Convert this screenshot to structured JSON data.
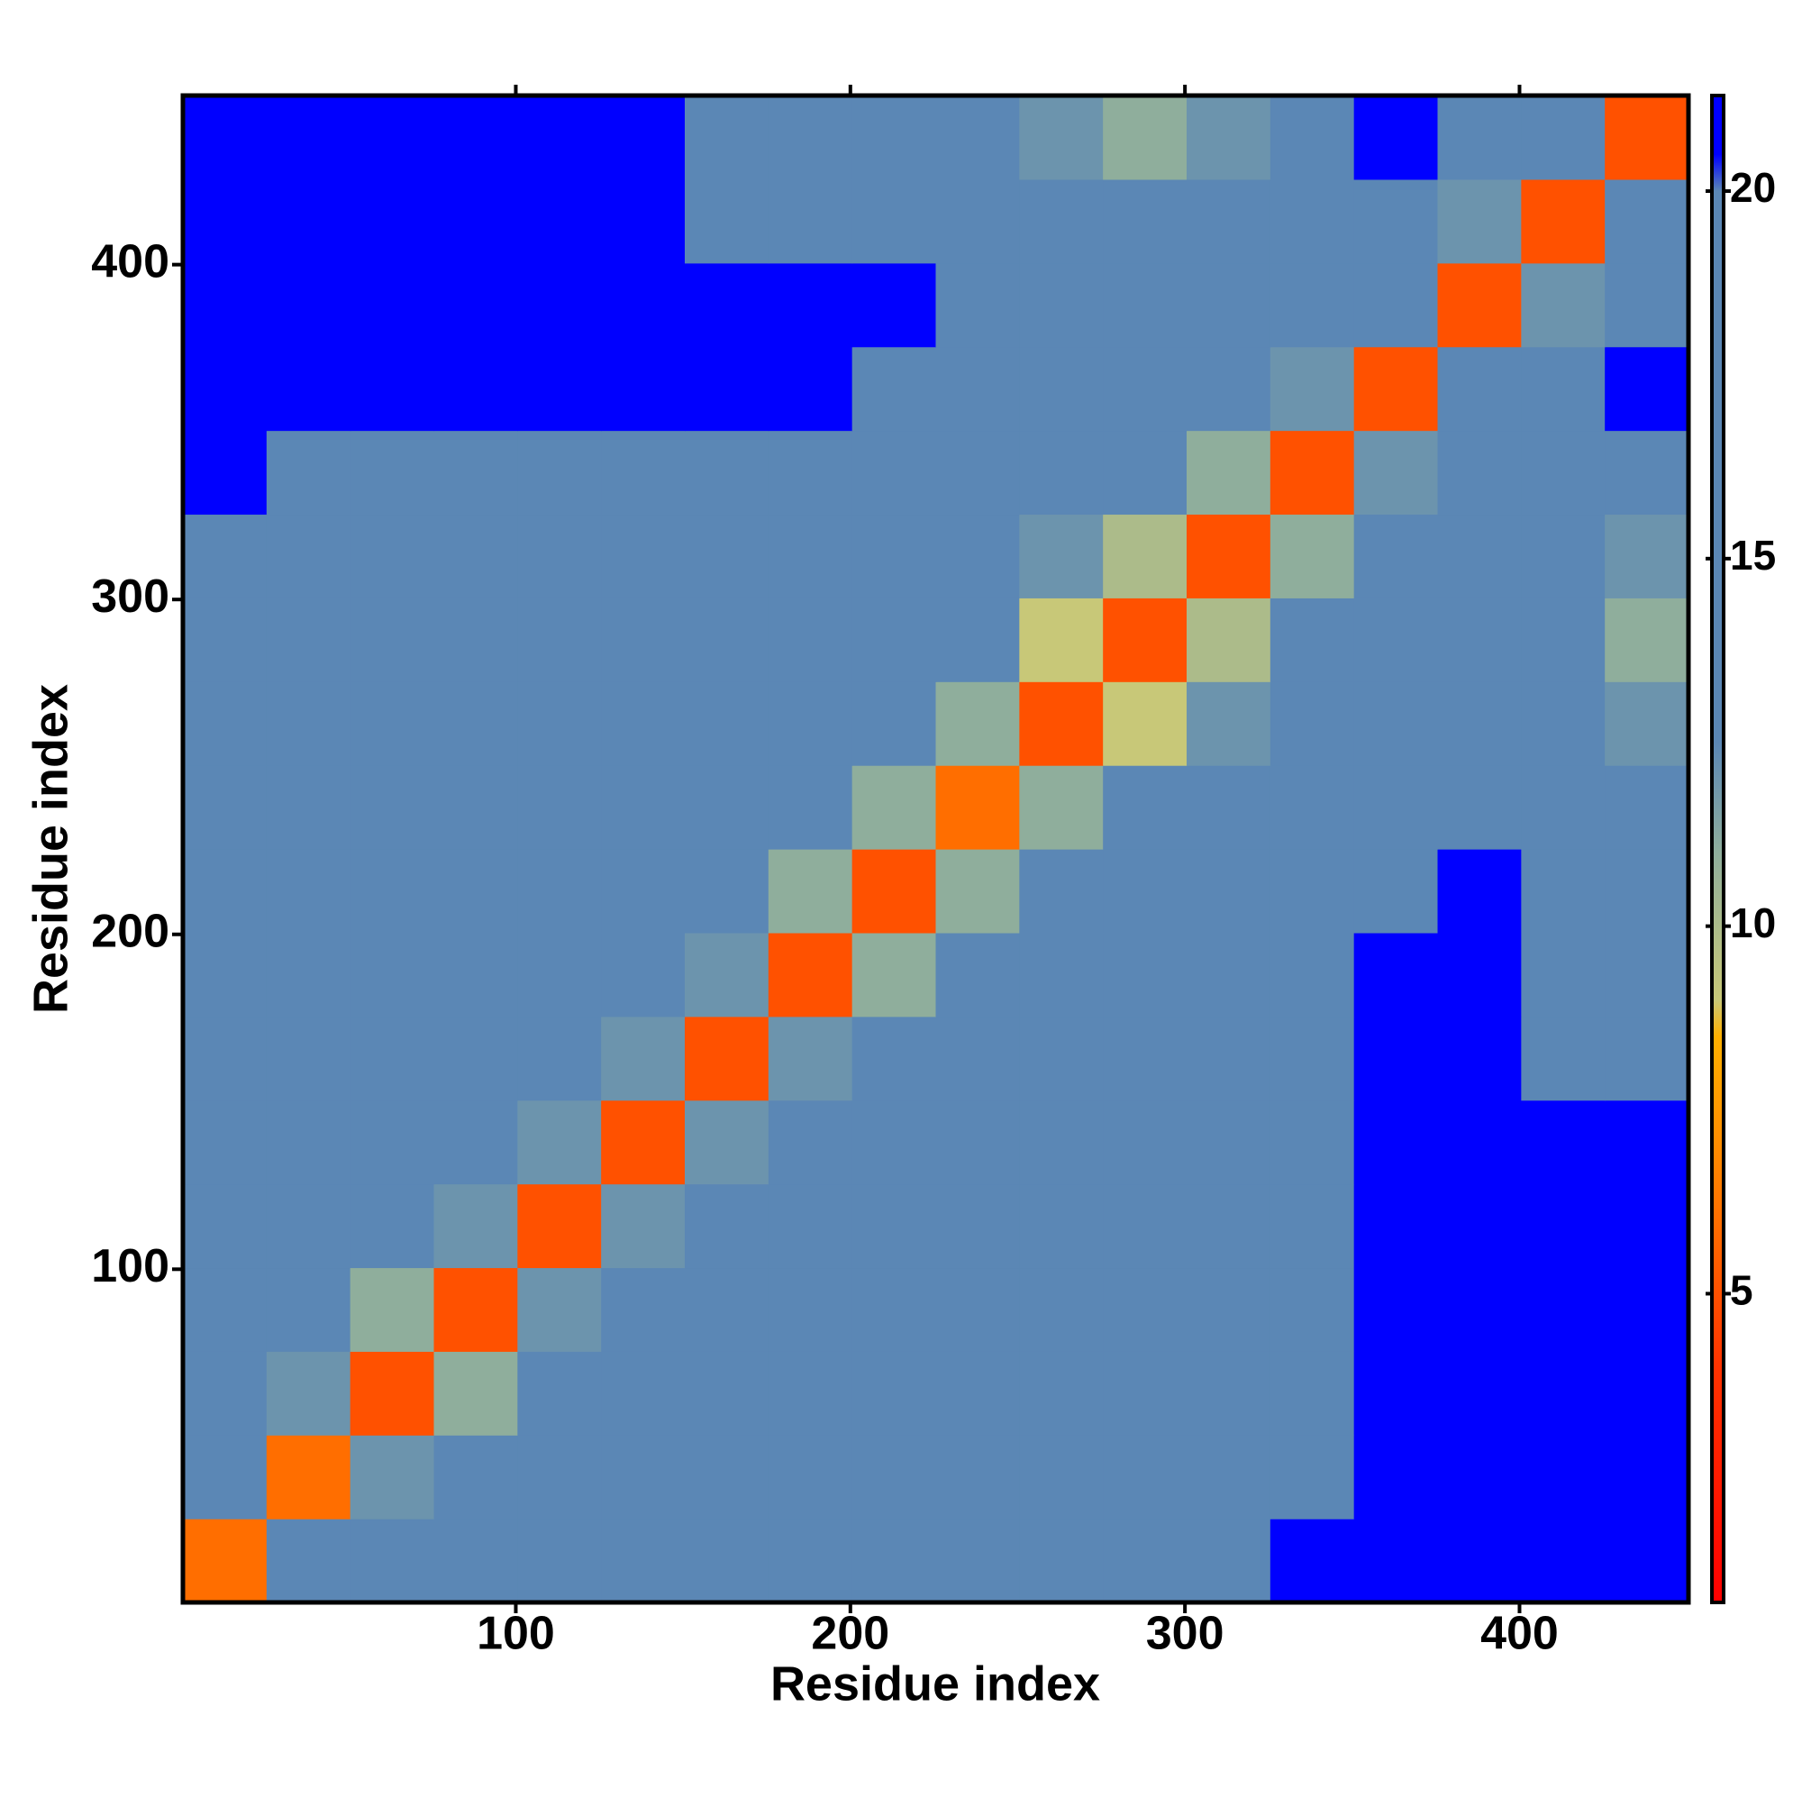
{
  "chart_data": {
    "type": "heatmap",
    "xlabel": "Residue index",
    "ylabel": "Residue index",
    "xlim": [
      0.5,
      450.5
    ],
    "ylim": [
      0.5,
      450.5
    ],
    "xticks": [
      100,
      200,
      300,
      400
    ],
    "yticks": [
      100,
      200,
      300,
      400
    ],
    "x": [
      13,
      38,
      63,
      88,
      113,
      138,
      163,
      188,
      213,
      238,
      263,
      288,
      313,
      338,
      363,
      388,
      413,
      438
    ],
    "y": [
      13,
      38,
      63,
      88,
      113,
      138,
      163,
      188,
      213,
      238,
      263,
      288,
      313,
      338,
      363,
      388,
      413,
      438
    ],
    "z": [
      [
        6,
        13,
        18,
        18,
        19,
        19,
        19,
        19,
        19,
        19,
        19,
        19,
        20,
        21,
        21,
        21,
        21,
        21
      ],
      [
        13,
        6,
        12,
        13,
        15,
        15,
        15,
        15,
        15,
        16,
        16,
        16,
        16,
        19,
        21,
        21,
        21,
        21
      ],
      [
        18,
        12,
        5,
        11,
        14,
        15,
        14,
        14,
        15,
        16,
        16,
        15,
        16,
        18,
        21,
        21,
        21,
        21
      ],
      [
        18,
        13,
        11,
        5,
        12,
        13,
        15,
        16,
        15,
        16,
        16,
        16,
        16,
        18,
        21,
        21,
        21,
        21
      ],
      [
        19,
        15,
        14,
        12,
        5,
        12,
        14,
        15,
        15,
        16,
        15,
        16,
        16,
        18,
        21,
        21,
        21,
        21
      ],
      [
        19,
        15,
        15,
        13,
        12,
        5,
        12,
        13,
        15,
        15,
        15,
        16,
        16,
        18,
        21,
        21,
        21,
        21
      ],
      [
        19,
        15,
        14,
        15,
        14,
        12,
        5,
        12,
        13,
        14,
        15,
        15,
        16,
        18,
        21,
        21,
        18,
        17
      ],
      [
        19,
        15,
        14,
        16,
        15,
        13,
        12,
        5,
        11,
        13,
        15,
        15,
        16,
        18,
        21,
        21,
        17,
        17
      ],
      [
        19,
        15,
        15,
        15,
        15,
        15,
        13,
        11,
        5,
        11,
        14,
        15,
        16,
        17,
        20,
        21,
        17,
        17
      ],
      [
        19,
        16,
        16,
        16,
        16,
        15,
        14,
        13,
        11,
        6,
        11,
        13,
        15,
        16,
        19,
        20,
        16,
        17
      ],
      [
        19,
        16,
        16,
        16,
        15,
        15,
        15,
        15,
        14,
        11,
        5,
        9,
        12,
        15,
        17,
        20,
        15,
        12
      ],
      [
        19,
        16,
        15,
        16,
        16,
        16,
        15,
        15,
        15,
        13,
        9,
        5,
        10,
        13,
        17,
        20,
        14,
        11
      ],
      [
        20,
        16,
        16,
        16,
        16,
        16,
        16,
        16,
        16,
        15,
        12,
        10,
        5,
        11,
        16,
        20,
        14,
        12
      ],
      [
        21,
        19,
        18,
        18,
        18,
        18,
        18,
        18,
        17,
        16,
        15,
        13,
        11,
        5,
        12,
        19,
        15,
        16
      ],
      [
        21,
        21,
        21,
        21,
        21,
        21,
        21,
        21,
        20,
        19,
        17,
        17,
        16,
        12,
        5,
        13,
        20,
        21
      ],
      [
        21,
        21,
        21,
        21,
        21,
        21,
        21,
        21,
        21,
        20,
        20,
        20,
        20,
        19,
        13,
        5,
        12,
        20
      ],
      [
        21,
        21,
        21,
        21,
        21,
        21,
        18,
        17,
        17,
        16,
        15,
        14,
        14,
        15,
        20,
        12,
        5,
        13
      ],
      [
        21,
        21,
        21,
        21,
        21,
        21,
        17,
        17,
        17,
        17,
        12,
        11,
        12,
        16,
        21,
        20,
        13,
        5
      ]
    ],
    "colorbar": {
      "lim": [
        0.8,
        21.3
      ],
      "ticks": [
        5,
        10,
        15,
        20
      ],
      "stops": [
        {
          "value": 0.8,
          "color": "#ff0000"
        },
        {
          "value": 4,
          "color": "#ff3300"
        },
        {
          "value": 7,
          "color": "#ff8c00"
        },
        {
          "value": 8.5,
          "color": "#ffb000"
        },
        {
          "value": 9,
          "color": "#c8c878"
        },
        {
          "value": 11,
          "color": "#8fae9c"
        },
        {
          "value": 12.5,
          "color": "#5b87b5"
        },
        {
          "value": 20,
          "color": "#5b87b5"
        },
        {
          "value": 20.5,
          "color": "#0000ff"
        },
        {
          "value": 21.3,
          "color": "#0000ff"
        }
      ]
    }
  }
}
